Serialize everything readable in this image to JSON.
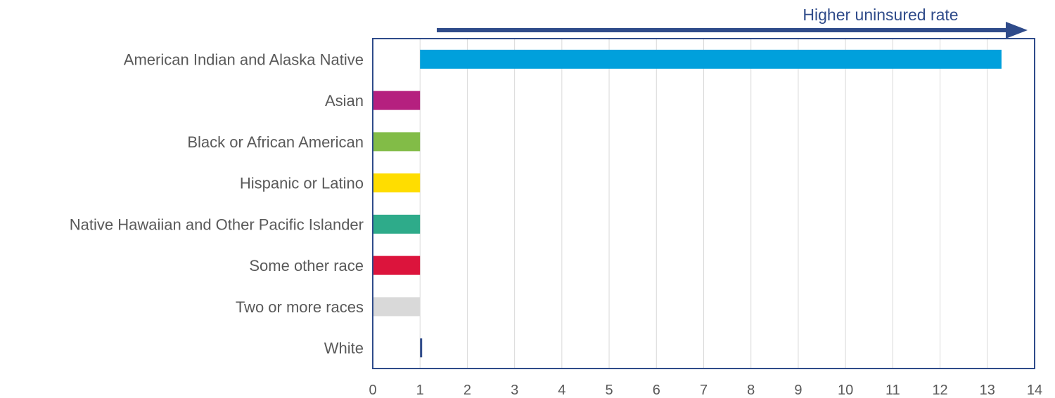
{
  "chart_data": {
    "type": "bar",
    "orientation": "horizontal",
    "baseline": 1,
    "categories": [
      "American Indian and Alaska Native",
      "Asian",
      "Black or African American",
      "Hispanic or Latino",
      "Native Hawaiian and Other Pacific Islander",
      "Some other race",
      "Two or more races",
      "White"
    ],
    "values": [
      13.3,
      0,
      0,
      0,
      0,
      0,
      0,
      1.03
    ],
    "colors": [
      "#00a0dc",
      "#b5207f",
      "#82bc47",
      "#ffdd00",
      "#2eab8a",
      "#dc143c",
      "#d9d9d9",
      "#2f4b8a"
    ],
    "xlim": [
      0,
      14
    ],
    "xticks": [
      "0",
      "1",
      "2",
      "3",
      "4",
      "5",
      "6",
      "7",
      "8",
      "9",
      "10",
      "11",
      "12",
      "13",
      "14"
    ],
    "grid": true,
    "annotation": "Higher uninsured rate",
    "annotation_color": "#2f4b8a",
    "frame_color": "#2f4b8a"
  }
}
